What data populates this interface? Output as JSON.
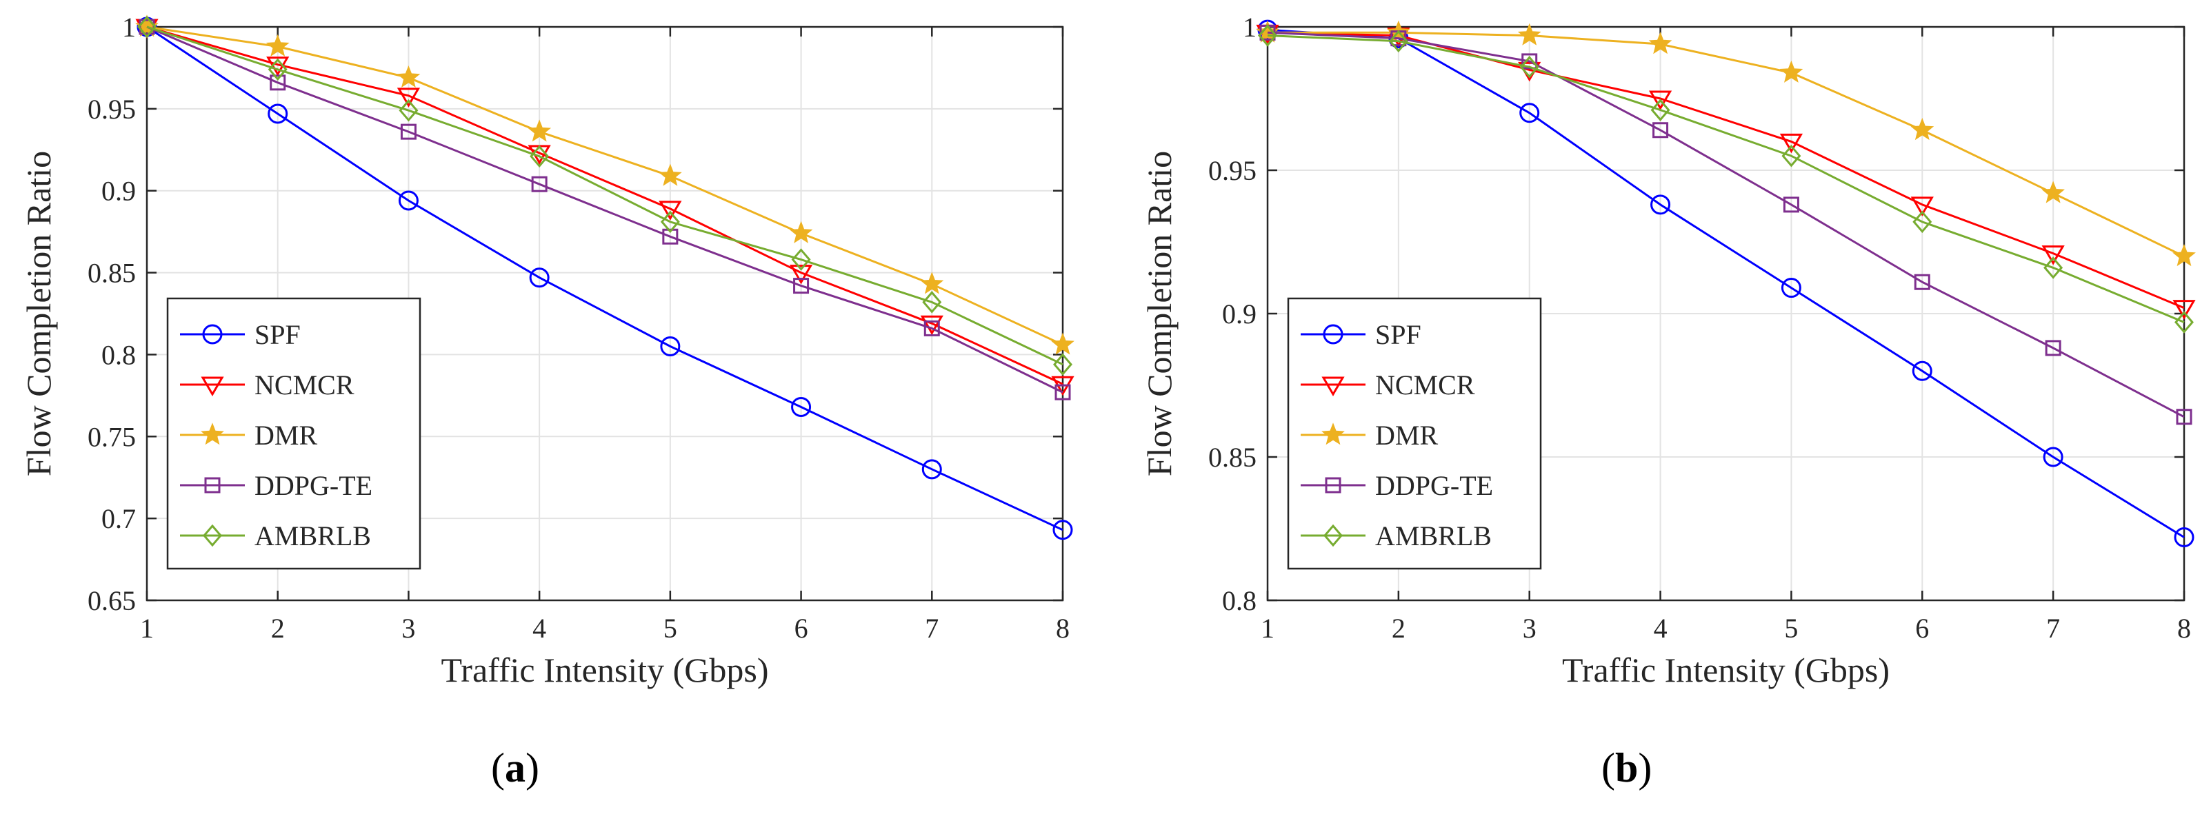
{
  "chart_data": [
    {
      "type": "line",
      "panel_label": "a",
      "xlabel": "Traffic Intensity (Gbps)",
      "ylabel": "Flow Completion Ratio",
      "x": [
        1,
        2,
        3,
        4,
        5,
        6,
        7,
        8
      ],
      "xlim": [
        1,
        8
      ],
      "ylim": [
        0.65,
        1
      ],
      "xticks": [
        "1",
        "2",
        "3",
        "4",
        "5",
        "6",
        "7",
        "8"
      ],
      "yticks": [
        0.65,
        0.7,
        0.75,
        0.8,
        0.85,
        0.9,
        0.95,
        1
      ],
      "ytick_labels": [
        "0.65",
        "0.7",
        "0.75",
        "0.8",
        "0.85",
        "0.9",
        "0.95",
        "1"
      ],
      "grid": true,
      "legend_position": "bottom-left",
      "series": [
        {
          "name": "SPF",
          "color": "#0000ff",
          "marker": "circle",
          "values": [
            1.0,
            0.947,
            0.894,
            0.847,
            0.805,
            0.768,
            0.73,
            0.693
          ]
        },
        {
          "name": "NCMCR",
          "color": "#ff0000",
          "marker": "triangle-down",
          "values": [
            1.0,
            0.977,
            0.958,
            0.923,
            0.889,
            0.85,
            0.819,
            0.782
          ]
        },
        {
          "name": "DMR",
          "color": "#edb120",
          "marker": "star",
          "values": [
            1.0,
            0.988,
            0.969,
            0.936,
            0.909,
            0.874,
            0.843,
            0.806
          ]
        },
        {
          "name": "DDPG-TE",
          "color": "#7e2f8e",
          "marker": "square",
          "values": [
            1.0,
            0.966,
            0.936,
            0.904,
            0.872,
            0.842,
            0.816,
            0.777
          ]
        },
        {
          "name": "AMBRLB",
          "color": "#77ac30",
          "marker": "diamond",
          "values": [
            1.0,
            0.974,
            0.949,
            0.921,
            0.881,
            0.858,
            0.832,
            0.794
          ]
        }
      ]
    },
    {
      "type": "line",
      "panel_label": "b",
      "xlabel": "Traffic Intensity (Gbps)",
      "ylabel": "Flow Completion Ratio",
      "x": [
        1,
        2,
        3,
        4,
        5,
        6,
        7,
        8
      ],
      "xlim": [
        1,
        8
      ],
      "ylim": [
        0.8,
        1
      ],
      "xticks": [
        "1",
        "2",
        "3",
        "4",
        "5",
        "6",
        "7",
        "8"
      ],
      "yticks": [
        0.8,
        0.85,
        0.9,
        0.95,
        1
      ],
      "ytick_labels": [
        "0.8",
        "0.85",
        "0.9",
        "0.95",
        "1"
      ],
      "grid": true,
      "legend_position": "bottom-left",
      "series": [
        {
          "name": "SPF",
          "color": "#0000ff",
          "marker": "circle",
          "values": [
            0.999,
            0.996,
            0.97,
            0.938,
            0.909,
            0.88,
            0.85,
            0.822
          ]
        },
        {
          "name": "NCMCR",
          "color": "#ff0000",
          "marker": "triangle-down",
          "values": [
            0.998,
            0.997,
            0.985,
            0.975,
            0.96,
            0.938,
            0.921,
            0.902
          ]
        },
        {
          "name": "DMR",
          "color": "#edb120",
          "marker": "star",
          "values": [
            0.998,
            0.998,
            0.997,
            0.994,
            0.984,
            0.964,
            0.942,
            0.92
          ]
        },
        {
          "name": "DDPG-TE",
          "color": "#7e2f8e",
          "marker": "square",
          "values": [
            0.998,
            0.996,
            0.988,
            0.964,
            0.938,
            0.911,
            0.888,
            0.864
          ]
        },
        {
          "name": "AMBRLB",
          "color": "#77ac30",
          "marker": "diamond",
          "values": [
            0.997,
            0.995,
            0.986,
            0.971,
            0.955,
            0.932,
            0.916,
            0.897
          ]
        }
      ]
    }
  ]
}
